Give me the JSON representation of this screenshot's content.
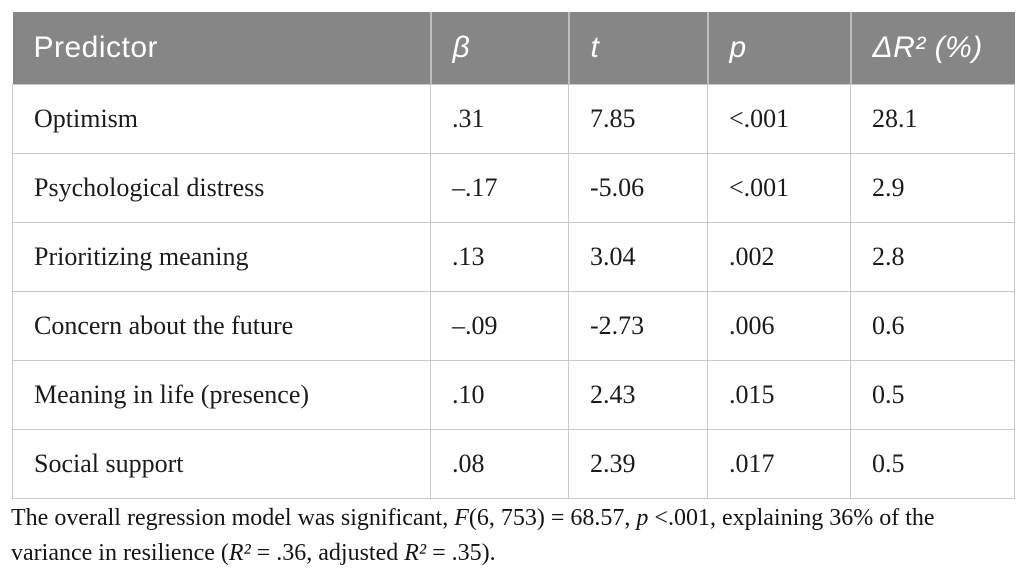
{
  "table": {
    "columns": [
      {
        "key": "predictor",
        "label": "Predictor"
      },
      {
        "key": "beta",
        "label": "β"
      },
      {
        "key": "t",
        "label": "t"
      },
      {
        "key": "p",
        "label": "p"
      },
      {
        "key": "dr2",
        "label": "ΔR² (%)"
      }
    ],
    "rows": [
      {
        "predictor": "Optimism",
        "beta": ".31",
        "t": "7.85",
        "p": "<.001",
        "dr2": "28.1"
      },
      {
        "predictor": "Psychological distress",
        "beta": "–.17",
        "t": "-5.06",
        "p": "<.001",
        "dr2": "2.9"
      },
      {
        "predictor": "Prioritizing meaning",
        "beta": ".13",
        "t": "3.04",
        "p": ".002",
        "dr2": "2.8"
      },
      {
        "predictor": "Concern about the future",
        "beta": "–.09",
        "t": "-2.73",
        "p": ".006",
        "dr2": "0.6"
      },
      {
        "predictor": "Meaning in life (presence)",
        "beta": ".10",
        "t": "2.43",
        "p": ".015",
        "dr2": "0.5"
      },
      {
        "predictor": "Social support",
        "beta": ".08",
        "t": "2.39",
        "p": ".017",
        "dr2": "0.5"
      }
    ]
  },
  "footnote": {
    "segments": [
      {
        "text": "The overall regression model was significant, "
      },
      {
        "text": "F",
        "italic": true
      },
      {
        "text": "(6, 753) = 68.57, "
      },
      {
        "text": "p",
        "italic": true
      },
      {
        "text": " <.001, explaining 36% of the variance in resilience ("
      },
      {
        "text": "R²",
        "italic": true
      },
      {
        "text": " = .36, adjusted "
      },
      {
        "text": "R²",
        "italic": true
      },
      {
        "text": " = .35)."
      }
    ]
  },
  "colors": {
    "header_background": "#868686",
    "header_text": "#ffffff",
    "cell_border": "#c9c9c9",
    "body_text": "#1b1b1b"
  }
}
